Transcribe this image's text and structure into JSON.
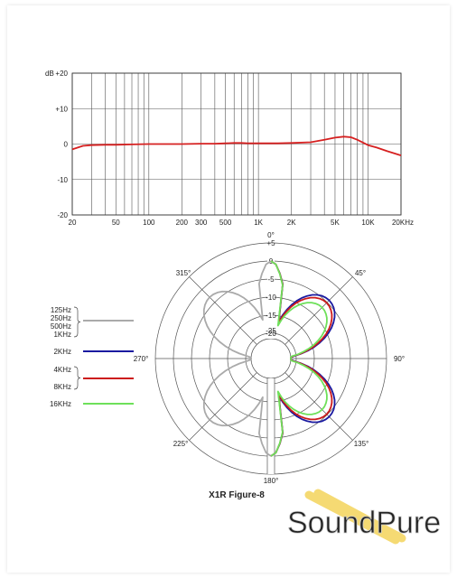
{
  "caption": "X1R Figure-8",
  "logo_text": "SoundPure",
  "colors": {
    "response": "#d62020",
    "gray": "#aaaaaa",
    "blue": "#1a1aa0",
    "red": "#cc1a1a",
    "green": "#6ee05a",
    "grid": "#555555"
  },
  "chart_data": [
    {
      "type": "line",
      "title": "",
      "xscale": "log",
      "xlim": [
        20,
        20000
      ],
      "ylim": [
        -20,
        20
      ],
      "ylabel": "dB",
      "y_ticks": [
        {
          "v": 20,
          "label": "+20"
        },
        {
          "v": 10,
          "label": "+10"
        },
        {
          "v": 0,
          "label": "0"
        },
        {
          "v": -10,
          "label": "-10"
        },
        {
          "v": -20,
          "label": "-20"
        }
      ],
      "x_ticks": [
        {
          "v": 20,
          "label": "20"
        },
        {
          "v": 50,
          "label": "50"
        },
        {
          "v": 100,
          "label": "100"
        },
        {
          "v": 200,
          "label": "200"
        },
        {
          "v": 300,
          "label": "300"
        },
        {
          "v": 500,
          "label": "500"
        },
        {
          "v": 1000,
          "label": "1K"
        },
        {
          "v": 2000,
          "label": "2K"
        },
        {
          "v": 5000,
          "label": "5K"
        },
        {
          "v": 10000,
          "label": "10K"
        },
        {
          "v": 20000,
          "label": "20KHz"
        }
      ],
      "grid": true,
      "series": [
        {
          "x": [
            20,
            25,
            30,
            40,
            50,
            70,
            100,
            150,
            200,
            300,
            400,
            500,
            600,
            700,
            800,
            1000,
            1500,
            2000,
            3000,
            4000,
            5000,
            6000,
            7000,
            8000,
            10000,
            12000,
            15000,
            20000
          ],
          "y": [
            -1.5,
            -0.5,
            -0.3,
            -0.2,
            -0.2,
            -0.1,
            0,
            0,
            0,
            0.1,
            0.1,
            0.2,
            0.3,
            0.3,
            0.2,
            0.2,
            0.2,
            0.3,
            0.5,
            1.2,
            1.8,
            2.1,
            1.9,
            1.2,
            -0.3,
            -1.0,
            -2.0,
            -3.2
          ]
        }
      ]
    },
    {
      "type": "polar",
      "title": "",
      "r_ticks": [
        {
          "v": 5,
          "label": "+5"
        },
        {
          "v": 0,
          "label": "0"
        },
        {
          "v": -5,
          "label": "-5"
        },
        {
          "v": -10,
          "label": "-10"
        },
        {
          "v": -15,
          "label": "-15"
        },
        {
          "v": -20,
          "label": "-20"
        },
        {
          "v": -25,
          "label": "-25"
        }
      ],
      "angle_labels": [
        {
          "deg": 0,
          "label": "0°"
        },
        {
          "deg": 45,
          "label": "45°"
        },
        {
          "deg": 90,
          "label": "90°"
        },
        {
          "deg": 135,
          "label": "135°"
        },
        {
          "deg": 180,
          "label": "180°"
        },
        {
          "deg": 225,
          "label": "225°"
        },
        {
          "deg": 270,
          "label": "270°"
        },
        {
          "deg": 315,
          "label": "315°"
        }
      ],
      "legend": [
        {
          "labels": [
            "125Hz",
            "250Hz",
            "500Hz",
            "1KHz"
          ],
          "color": "#aaaaaa"
        },
        {
          "labels": [
            "2KHz"
          ],
          "color": "#1a1aa0"
        },
        {
          "labels": [
            "4KHz",
            "8KHz"
          ],
          "color": "#cc1a1a"
        },
        {
          "labels": [
            "16KHz"
          ],
          "color": "#6ee05a"
        }
      ],
      "series": [
        {
          "color": "#aaaaaa",
          "side": "left",
          "at_45": -3,
          "at_135": -3
        },
        {
          "color": "#1a1aa0",
          "side": "right",
          "at_45": -4.2,
          "at_135": -4.2
        },
        {
          "color": "#cc1a1a",
          "side": "right",
          "at_45": -5.2,
          "at_135": -5.2
        },
        {
          "color": "#6ee05a",
          "side": "right",
          "at_45": -7,
          "at_135": -7
        }
      ]
    }
  ]
}
